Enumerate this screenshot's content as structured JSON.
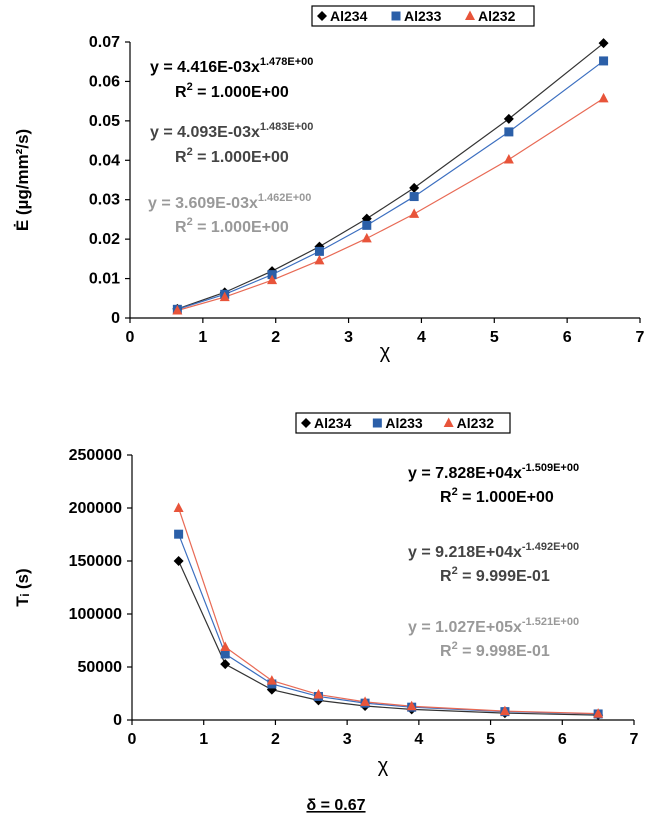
{
  "chart_data": [
    {
      "type": "scatter",
      "ylabel": "Ė (µg/mm²/s)",
      "xlabel": "χ",
      "x": [
        0.65,
        1.3,
        1.95,
        2.6,
        3.25,
        3.9,
        5.2,
        6.5
      ],
      "xlim": [
        0,
        7
      ],
      "xticks": [
        0,
        1,
        2,
        3,
        4,
        5,
        6,
        7
      ],
      "ylim": [
        0,
        0.07
      ],
      "yticks": [
        0,
        0.01,
        0.02,
        0.03,
        0.04,
        0.05,
        0.06,
        0.07
      ],
      "grid": false,
      "legend": "top",
      "series": [
        {
          "name": "Al234",
          "color": "#000000",
          "line_color": "#333333",
          "marker": "diamond",
          "values": [
            0.0023,
            0.0065,
            0.0119,
            0.0181,
            0.0252,
            0.033,
            0.0505,
            0.0697
          ]
        },
        {
          "name": "Al233",
          "color": "#2b5fa8",
          "line_color": "#3c6fc0",
          "marker": "square",
          "values": [
            0.0022,
            0.006,
            0.011,
            0.0169,
            0.0235,
            0.0308,
            0.0472,
            0.0652
          ]
        },
        {
          "name": "Al232",
          "color": "#e8543a",
          "line_color": "#e86a55",
          "marker": "triangle",
          "values": [
            0.0019,
            0.0053,
            0.0096,
            0.0146,
            0.0202,
            0.0264,
            0.0402,
            0.0557
          ]
        }
      ],
      "annotations": [
        {
          "equation": "y = 4.416E-03x",
          "exponent": "1.478E+00",
          "r": "R",
          "r_sup": "2",
          "r_value": " = 1.000E+00",
          "color": "#000000"
        },
        {
          "equation": "y = 4.093E-03x",
          "exponent": "1.483E+00",
          "r": "R",
          "r_sup": "2",
          "r_value": " = 1.000E+00",
          "color": "#444444"
        },
        {
          "equation": "y = 3.609E-03x",
          "exponent": "1.462E+00",
          "r": "R",
          "r_sup": "2",
          "r_value": " = 1.000E+00",
          "color": "#999999"
        }
      ]
    },
    {
      "type": "scatter",
      "ylabel": "Tᵢ (s)",
      "xlabel": "χ",
      "x": [
        0.65,
        1.3,
        1.95,
        2.6,
        3.25,
        3.9,
        5.2,
        6.5
      ],
      "xlim": [
        0,
        7
      ],
      "xticks": [
        0,
        1,
        2,
        3,
        4,
        5,
        6,
        7
      ],
      "ylim": [
        0,
        250000
      ],
      "yticks": [
        0,
        50000,
        100000,
        150000,
        200000,
        250000
      ],
      "grid": false,
      "legend": "top",
      "series": [
        {
          "name": "Al234",
          "color": "#000000",
          "line_color": "#333333",
          "marker": "diamond",
          "values": [
            150000,
            52700,
            28600,
            18500,
            13200,
            10000,
            6500,
            4600
          ]
        },
        {
          "name": "Al233",
          "color": "#2b5fa8",
          "line_color": "#3c6fc0",
          "marker": "square",
          "values": [
            175300,
            62300,
            34000,
            22200,
            15900,
            12100,
            7900,
            5700
          ]
        },
        {
          "name": "Al232",
          "color": "#e8543a",
          "line_color": "#e86a55",
          "marker": "triangle",
          "values": [
            200000,
            68900,
            37200,
            24000,
            17100,
            13000,
            8400,
            6000
          ]
        }
      ],
      "annotations": [
        {
          "equation": "y = 7.828E+04x",
          "exponent": "-1.509E+00",
          "r": "R",
          "r_sup": "2",
          "r_value": " = 1.000E+00",
          "color": "#000000"
        },
        {
          "equation": "y = 9.218E+04x",
          "exponent": "-1.492E+00",
          "r": "R",
          "r_sup": "2",
          "r_value": " = 9.999E-01",
          "color": "#444444"
        },
        {
          "equation": "y = 1.027E+05x",
          "exponent": "-1.521E+00",
          "r": "R",
          "r_sup": "2",
          "r_value": " = 9.998E-01",
          "color": "#999999"
        }
      ]
    }
  ],
  "caption": "δ = 0.67"
}
